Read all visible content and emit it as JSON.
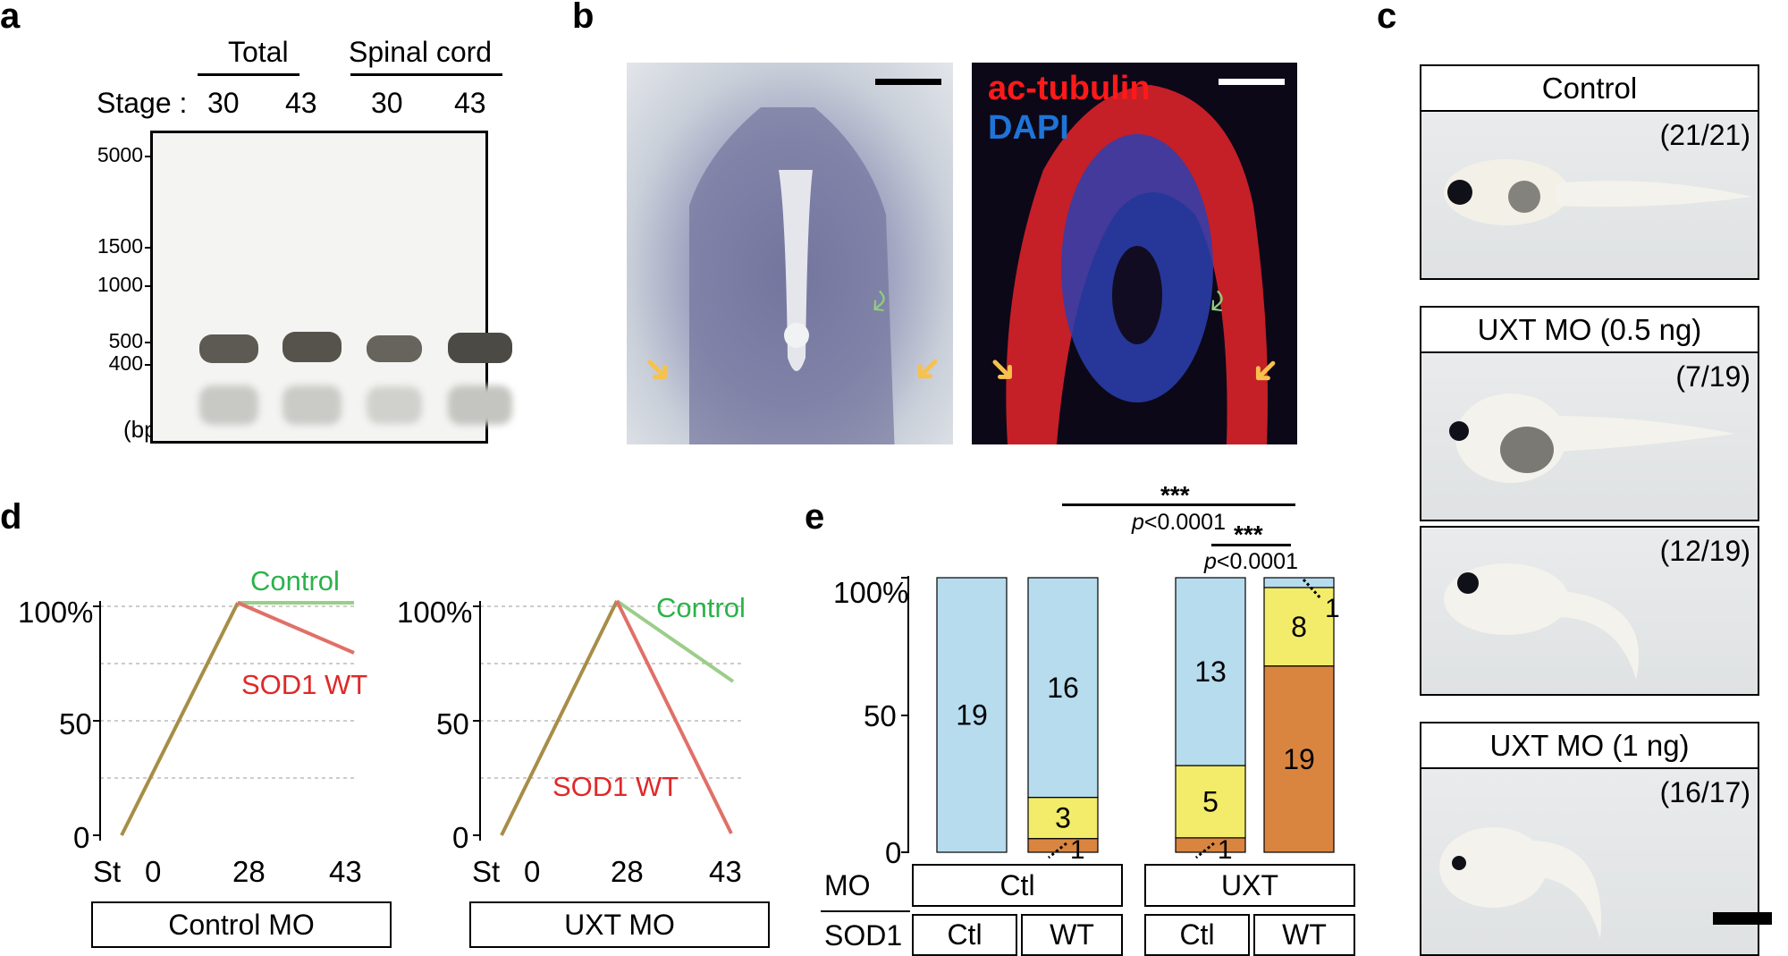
{
  "panels": [
    "a",
    "b",
    "c",
    "d",
    "e"
  ],
  "a": {
    "group_total": "Total",
    "group_spinal": "Spinal cord",
    "stage_label": "Stage :",
    "lanes": [
      "30",
      "43",
      "30",
      "43"
    ],
    "markers": [
      "5000",
      "1500",
      "1000",
      "500",
      "400"
    ],
    "unit": "(bp)"
  },
  "b": {
    "label_ac": "ac-tubulin",
    "label_dapi": "DAPI"
  },
  "c": {
    "control": "Control",
    "control_ratio": "(21/21)",
    "uxt_low": "UXT MO (0.5 ng)",
    "uxt_low_ratio1": "(7/19)",
    "uxt_low_ratio2": "(12/19)",
    "uxt_high": "UXT MO (1 ng)",
    "uxt_high_ratio": "(16/17)",
    "colors": {
      "low": "#a6d18f",
      "high": "#3aa340"
    }
  },
  "d": {
    "y_ticks": [
      "100%",
      "50",
      "0"
    ],
    "x_ticks": [
      "St",
      "0",
      "28",
      "43"
    ],
    "left_box": "Control MO",
    "right_box": "UXT MO",
    "control_label": "Control",
    "sod_label": "SOD1 WT",
    "colors": {
      "control": "#2bb34a",
      "sod": "#e02828",
      "shared": "#a88d47"
    }
  },
  "chart_data": {
    "type": "bar",
    "title": "",
    "xlabel": "",
    "ylabel": "",
    "ylim": [
      0,
      100
    ],
    "y_ticks": [
      "100%",
      "50",
      "0"
    ],
    "categories": [
      "Ctl/Ctl",
      "Ctl/WT",
      "UXT/Ctl",
      "UXT/WT"
    ],
    "mo_row_label": "MO",
    "sod_row_label": "SOD1",
    "mo_groups": [
      "Ctl",
      "UXT"
    ],
    "sod_groups": [
      "Ctl",
      "WT",
      "Ctl",
      "WT"
    ],
    "series": [
      {
        "color": "#b6dcee",
        "values": [
          19,
          16,
          13,
          1
        ],
        "labels": [
          "19",
          "16",
          "13",
          ""
        ]
      },
      {
        "color": "#f2ec6a",
        "values": [
          0,
          3,
          5,
          8
        ],
        "labels": [
          "",
          "3",
          "5",
          "8"
        ]
      },
      {
        "color": "#d98540",
        "values": [
          0,
          1,
          1,
          19
        ],
        "labels": [
          "",
          "1",
          "1",
          "19"
        ]
      }
    ],
    "extra_label": "1",
    "sig_top": {
      "stars": "***",
      "p": "<0.0001"
    },
    "sig_bottom": {
      "stars": "***",
      "p": "<0.0001"
    },
    "p_italic": "p"
  }
}
